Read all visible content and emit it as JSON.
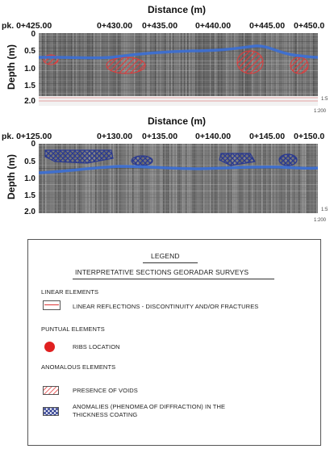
{
  "section1": {
    "x_title": "Distance (m)",
    "y_title": "Depth (m)",
    "x_ticks": [
      "pk. 0+425.00",
      "0+430.00",
      "0+435.00",
      "0+440.00",
      "0+445.00",
      "0+450.0"
    ],
    "y_ticks": [
      "0",
      "0.5",
      "1.0",
      "1.5",
      "2.0"
    ],
    "scale_top": "1:5",
    "scale_bottom": "1:200"
  },
  "section2": {
    "x_title": "Distance (m)",
    "y_title": "Depth (m)",
    "x_ticks": [
      "pk. 0+125.00",
      "0+130.00",
      "0+135.00",
      "0+140.00",
      "0+145.00",
      "0+150.0"
    ],
    "y_ticks": [
      "0",
      "0.5",
      "1.0",
      "1.5",
      "2.0"
    ],
    "scale_top": "1:5",
    "scale_bottom": "1:200"
  },
  "legend": {
    "title": "LEGEND",
    "subtitle": "INTERPRETATIVE SECTIONS GEORADAR SURVEYS",
    "groups": [
      {
        "heading": "LINEAR ELEMENTS",
        "item": "LINEAR REFLECTIONS - DISCONTINUITY AND/OR FRACTURES"
      },
      {
        "heading": "PUNTUAL ELEMENTS",
        "item": "RIBS LOCATION"
      },
      {
        "heading": "ANOMALOUS ELEMENTS",
        "item": "PRESENCE OF VOIDS"
      }
    ],
    "anomaly_line1": "ANOMALIES (PHENOMEA OF DIFFRACTION) IN THE",
    "anomaly_line2": "THICKNESS COATING"
  },
  "colors": {
    "blue_line": "#3b6fd6",
    "void_red": "#e23a3a",
    "anomaly_blue": "#2b3a8f",
    "rib_red": "#e02020"
  }
}
